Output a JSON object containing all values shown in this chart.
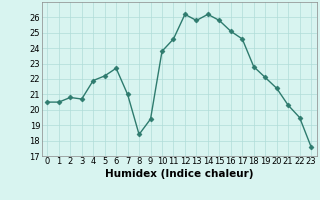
{
  "x": [
    0,
    1,
    2,
    3,
    4,
    5,
    6,
    7,
    8,
    9,
    10,
    11,
    12,
    13,
    14,
    15,
    16,
    17,
    18,
    19,
    20,
    21,
    22,
    23
  ],
  "y": [
    20.5,
    20.5,
    20.8,
    20.7,
    21.9,
    22.2,
    22.7,
    21.0,
    18.4,
    19.4,
    23.8,
    24.6,
    26.2,
    25.8,
    26.2,
    25.8,
    25.1,
    24.6,
    22.8,
    22.1,
    21.4,
    20.3,
    19.5,
    17.6
  ],
  "line_color": "#2e7b6e",
  "marker": "D",
  "markersize": 2.5,
  "linewidth": 1.0,
  "bg_color": "#d8f4f0",
  "grid_color": "#b0ddd8",
  "xlabel": "Humidex (Indice chaleur)",
  "xlabel_fontsize": 7.5,
  "tick_fontsize": 6,
  "xlim": [
    -0.5,
    23.5
  ],
  "ylim": [
    17,
    27
  ],
  "yticks": [
    17,
    18,
    19,
    20,
    21,
    22,
    23,
    24,
    25,
    26
  ],
  "xticks": [
    0,
    1,
    2,
    3,
    4,
    5,
    6,
    7,
    8,
    9,
    10,
    11,
    12,
    13,
    14,
    15,
    16,
    17,
    18,
    19,
    20,
    21,
    22,
    23
  ]
}
